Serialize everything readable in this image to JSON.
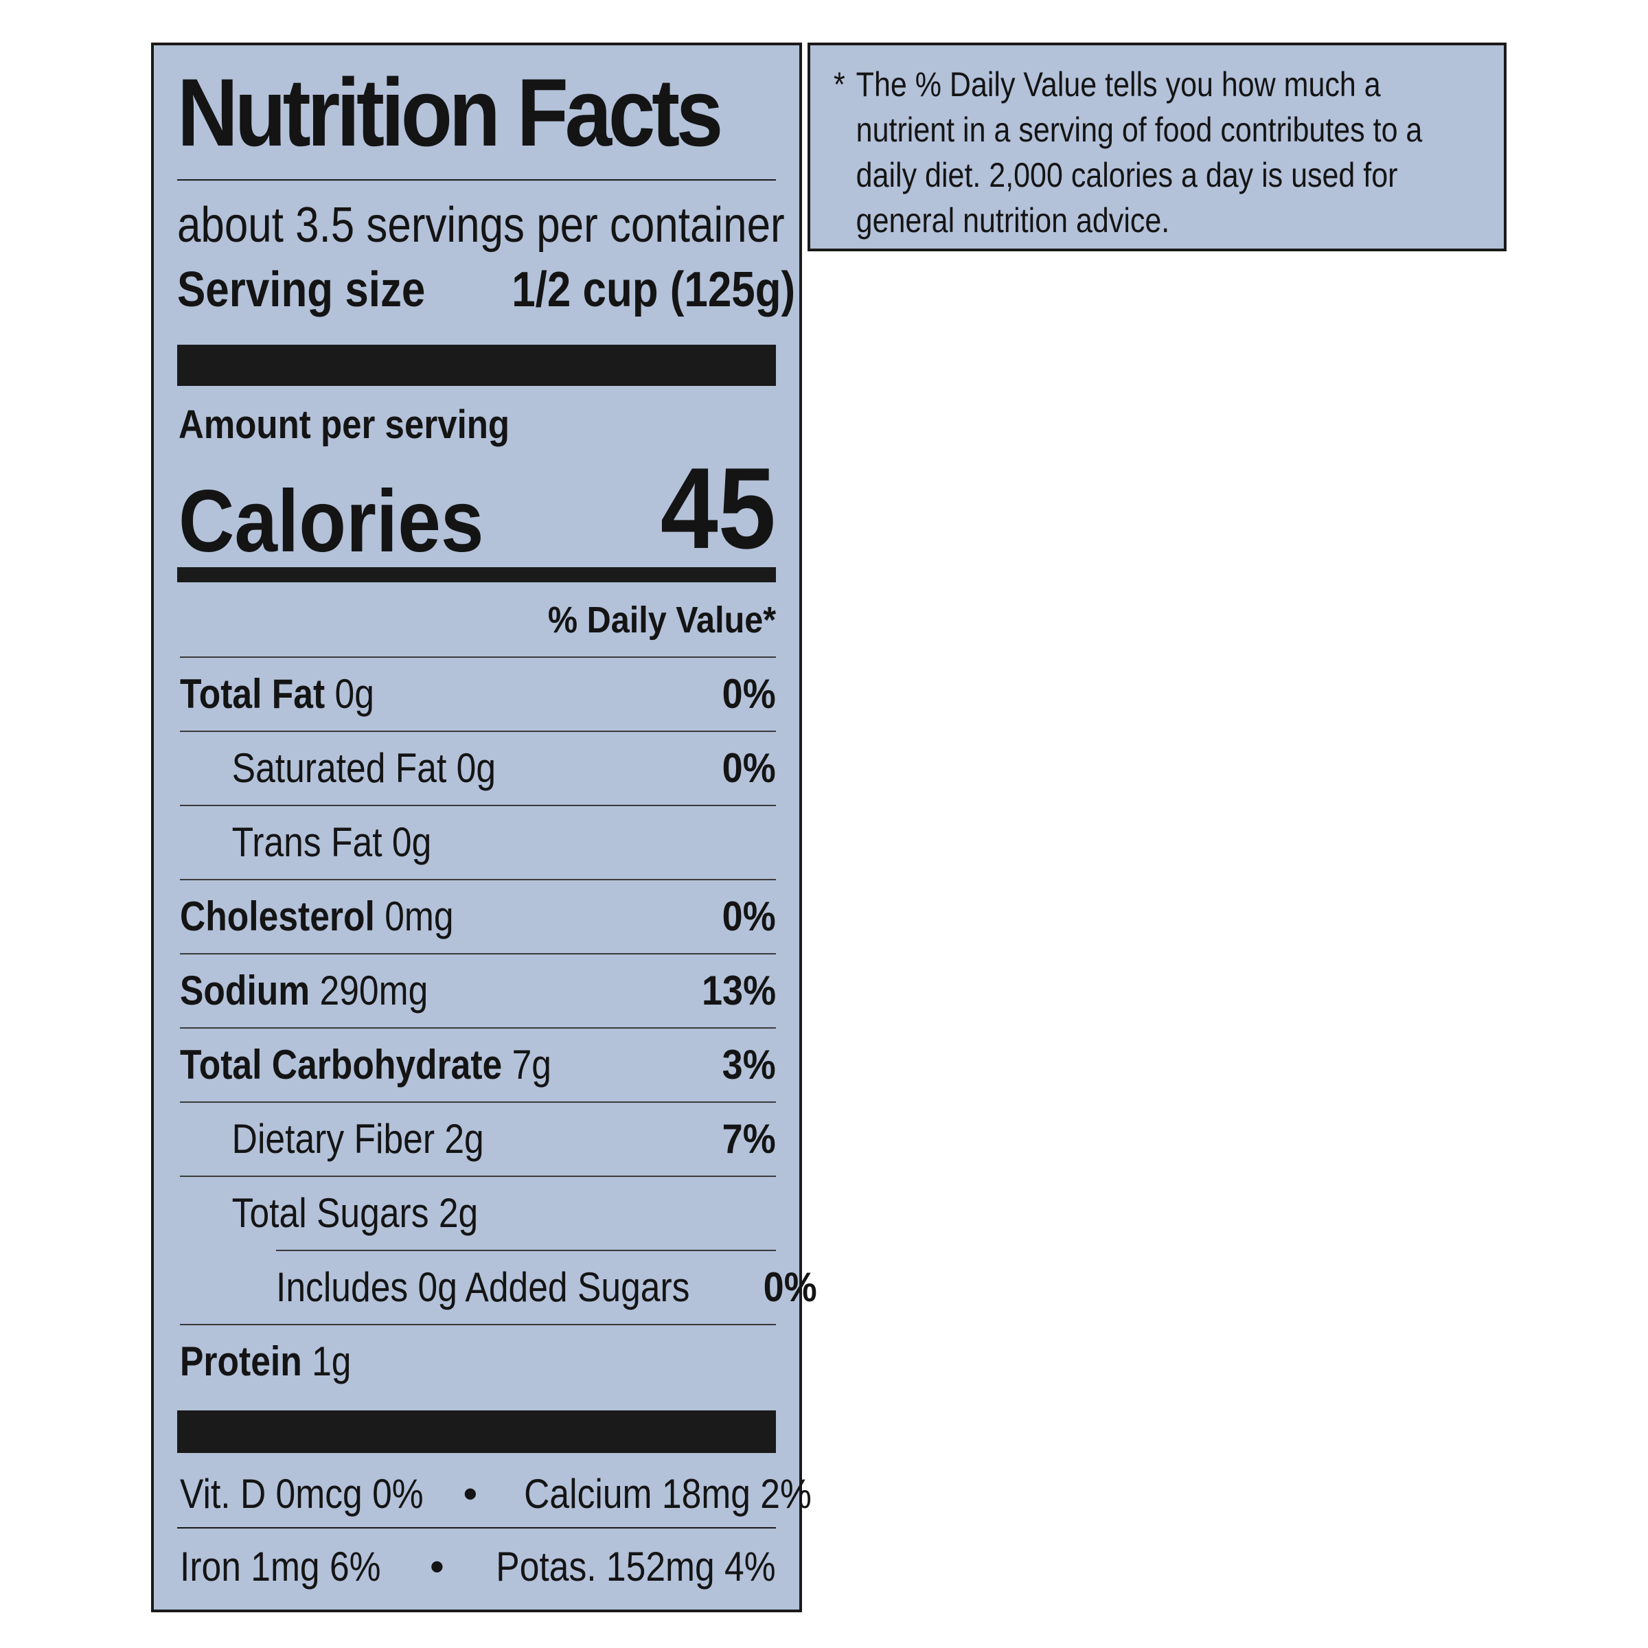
{
  "label": {
    "title": "Nutrition Facts",
    "servings_per_container": "about 3.5 servings per container",
    "serving_size_label": "Serving size",
    "serving_size_value": "1/2 cup (125g)",
    "amount_per_serving": "Amount per serving",
    "calories_label": "Calories",
    "calories_value": "45",
    "daily_value_header": "% Daily Value*",
    "nutrients": [
      {
        "name": "Total Fat",
        "amount": "0g",
        "dv": "0%"
      },
      {
        "name": "Saturated Fat 0g",
        "amount": "",
        "dv": "0%"
      },
      {
        "name": "Trans Fat 0g",
        "amount": "",
        "dv": ""
      },
      {
        "name": "Cholesterol",
        "amount": "0mg",
        "dv": "0%"
      },
      {
        "name": "Sodium",
        "amount": "290mg",
        "dv": "13%"
      },
      {
        "name": "Total Carbohydrate",
        "amount": "7g",
        "dv": "3%"
      },
      {
        "name": "Dietary Fiber 2g",
        "amount": "",
        "dv": "7%"
      },
      {
        "name": "Total Sugars 2g",
        "amount": "",
        "dv": ""
      },
      {
        "name": "Includes 0g Added Sugars",
        "amount": "",
        "dv": "0%"
      },
      {
        "name": "Protein",
        "amount": "1g",
        "dv": ""
      }
    ],
    "vitamins": [
      {
        "left": "Vit. D 0mcg 0%",
        "bullet": "•",
        "right": "Calcium 18mg 2%"
      },
      {
        "left": "Iron 1mg 6%",
        "bullet": "•",
        "right": "Potas. 152mg 4%"
      }
    ]
  },
  "footnote": {
    "star": "*",
    "text": "The % Daily Value tells you how much a nutrient in a serving of food contributes to a daily diet. 2,000 calories a day is used for general nutrition advice."
  },
  "colors": {
    "panel_background": "#b3c1d9",
    "ink": "#141414"
  }
}
